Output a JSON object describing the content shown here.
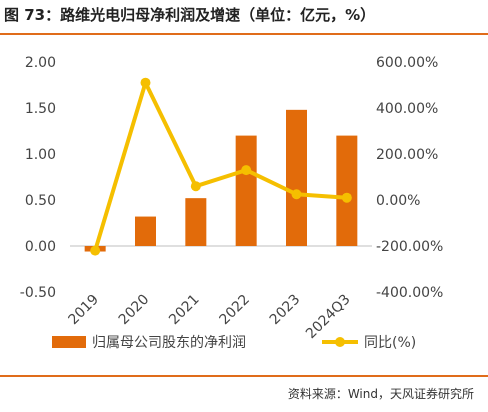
{
  "header": {
    "title": "图 73：路维光电归母净利润及增速（单位：亿元，%）"
  },
  "footer": {
    "source": "资料来源：Wind，天风证券研究所"
  },
  "colors": {
    "bar": "#e26b0a",
    "line": "#f5bf00",
    "rule": "#e06c1a",
    "axis": "#bfbfbf"
  },
  "chart_data": {
    "type": "bar",
    "categories": [
      "2019",
      "2020",
      "2021",
      "2022",
      "2023",
      "2024Q3"
    ],
    "series": [
      {
        "name": "归属母公司股东的净利润",
        "type": "bar",
        "axis": "left",
        "values": [
          -0.06,
          0.32,
          0.52,
          1.2,
          1.48,
          1.2
        ]
      },
      {
        "name": "同比(%)",
        "type": "line",
        "axis": "right",
        "values": [
          -220,
          510,
          60,
          130,
          25,
          10
        ]
      }
    ],
    "ylim": [
      -0.5,
      2.0
    ],
    "yticks": [
      "2.00",
      "1.50",
      "1.00",
      "0.50",
      "0.00",
      "-0.50"
    ],
    "ytick_values": [
      2.0,
      1.5,
      1.0,
      0.5,
      0.0,
      -0.5
    ],
    "y2lim": [
      -400,
      600
    ],
    "y2ticks": [
      "600.00%",
      "400.00%",
      "200.00%",
      "0.00%",
      "-200.00%",
      "-400.00%"
    ],
    "y2tick_values": [
      600,
      400,
      200,
      0,
      -200,
      -400
    ],
    "legend_position": "bottom",
    "grid": false
  }
}
